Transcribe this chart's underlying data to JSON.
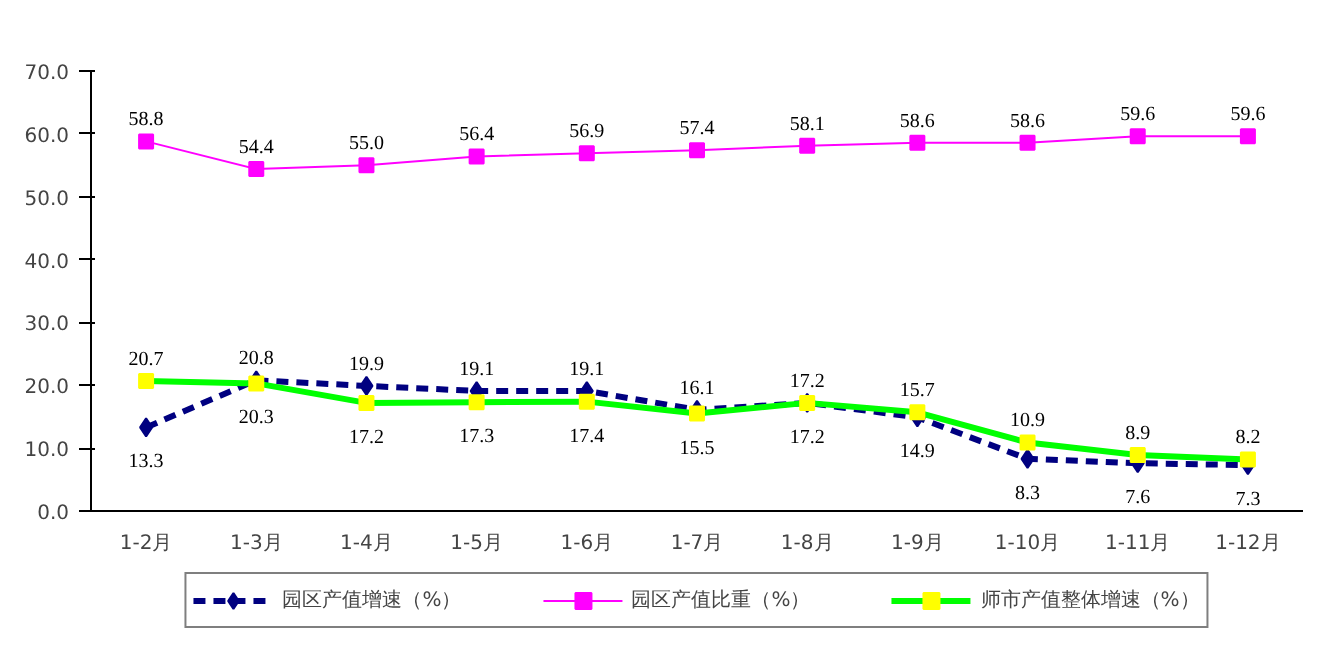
{
  "chart_data": {
    "type": "line",
    "categories": [
      "1-2月",
      "1-3月",
      "1-4月",
      "1-5月",
      "1-6月",
      "1-7月",
      "1-8月",
      "1-9月",
      "1-10月",
      "1-11月",
      "1-12月"
    ],
    "ylim": [
      0,
      70
    ],
    "yticks": [
      {
        "value": 0,
        "label": "0.0"
      },
      {
        "value": 10,
        "label": "10.0"
      },
      {
        "value": 20,
        "label": "20.0"
      },
      {
        "value": 30,
        "label": "30.0"
      },
      {
        "value": 40,
        "label": "40.0"
      },
      {
        "value": 50,
        "label": "50.0"
      },
      {
        "value": 60,
        "label": "60.0"
      },
      {
        "value": 70,
        "label": "70.0"
      }
    ],
    "series": [
      {
        "name": "园区产值增速（%）",
        "color": "#000080",
        "marker": "diamond",
        "line_style": "dashed",
        "values": [
          13.3,
          20.8,
          19.9,
          19.1,
          19.1,
          16.1,
          17.2,
          14.9,
          8.3,
          7.6,
          7.3
        ]
      },
      {
        "name": "园区产值比重（%）",
        "color": "#ff00ff",
        "marker": "square",
        "line_style": "solid",
        "values": [
          58.8,
          54.4,
          55.0,
          56.4,
          56.9,
          57.4,
          58.1,
          58.6,
          58.6,
          59.6,
          59.6
        ],
        "value_labels": [
          "58.8",
          "54.4",
          "55.0",
          "56.4",
          "56.9",
          "57.4",
          "58.1",
          "58.6",
          "58.6",
          "59.6",
          "59.6"
        ]
      },
      {
        "name": "师市产值整体增速（%）",
        "color": "#00ff00",
        "colors": [
          "#ffff00",
          "#ffff00",
          "#ffff00",
          "#ffff00",
          "#ffff00",
          "#ffff00",
          "#ffff00",
          "#ffff00",
          "#ffff00",
          "#ffff00",
          "#ffff00"
        ],
        "marker": "square",
        "line_style": "solid",
        "values": [
          20.7,
          20.3,
          17.2,
          17.3,
          17.4,
          15.5,
          17.2,
          15.7,
          10.9,
          8.9,
          8.2
        ]
      }
    ],
    "data_labels": true,
    "grid": false,
    "legend": "bottom"
  }
}
